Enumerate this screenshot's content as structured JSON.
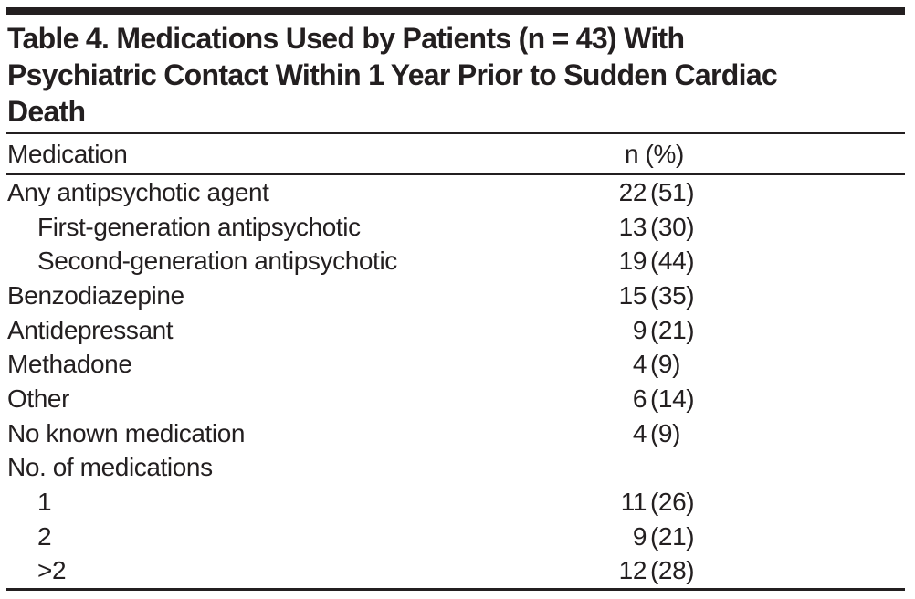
{
  "table": {
    "title_lines": [
      "Table 4. Medications Used by Patients (n = 43) With",
      "Psychiatric Contact Within 1 Year Prior to Sudden Cardiac",
      "Death"
    ],
    "columns": {
      "medication": "Medication",
      "value": "n (%)"
    },
    "rows": [
      {
        "label": "Any antipsychotic agent",
        "n": "22",
        "pct": "(51)",
        "indent": false
      },
      {
        "label": "First-generation antipsychotic",
        "n": "13",
        "pct": "(30)",
        "indent": true
      },
      {
        "label": "Second-generation antipsychotic",
        "n": "19",
        "pct": "(44)",
        "indent": true
      },
      {
        "label": "Benzodiazepine",
        "n": "15",
        "pct": "(35)",
        "indent": false
      },
      {
        "label": "Antidepressant",
        "n": "9",
        "pct": "(21)",
        "indent": false
      },
      {
        "label": "Methadone",
        "n": "4",
        "pct": "(9)",
        "indent": false
      },
      {
        "label": "Other",
        "n": "6",
        "pct": "(14)",
        "indent": false
      },
      {
        "label": "No known medication",
        "n": "4",
        "pct": "(9)",
        "indent": false
      },
      {
        "label": "No. of medications",
        "n": "",
        "pct": "",
        "indent": false
      },
      {
        "label": "1",
        "n": "11",
        "pct": "(26)",
        "indent": true
      },
      {
        "label": "2",
        "n": "9",
        "pct": "(21)",
        "indent": true
      },
      {
        "label": ">2",
        "n": "12",
        "pct": "(28)",
        "indent": true
      }
    ],
    "colors": {
      "ink": "#231f20",
      "background": "#ffffff"
    }
  }
}
